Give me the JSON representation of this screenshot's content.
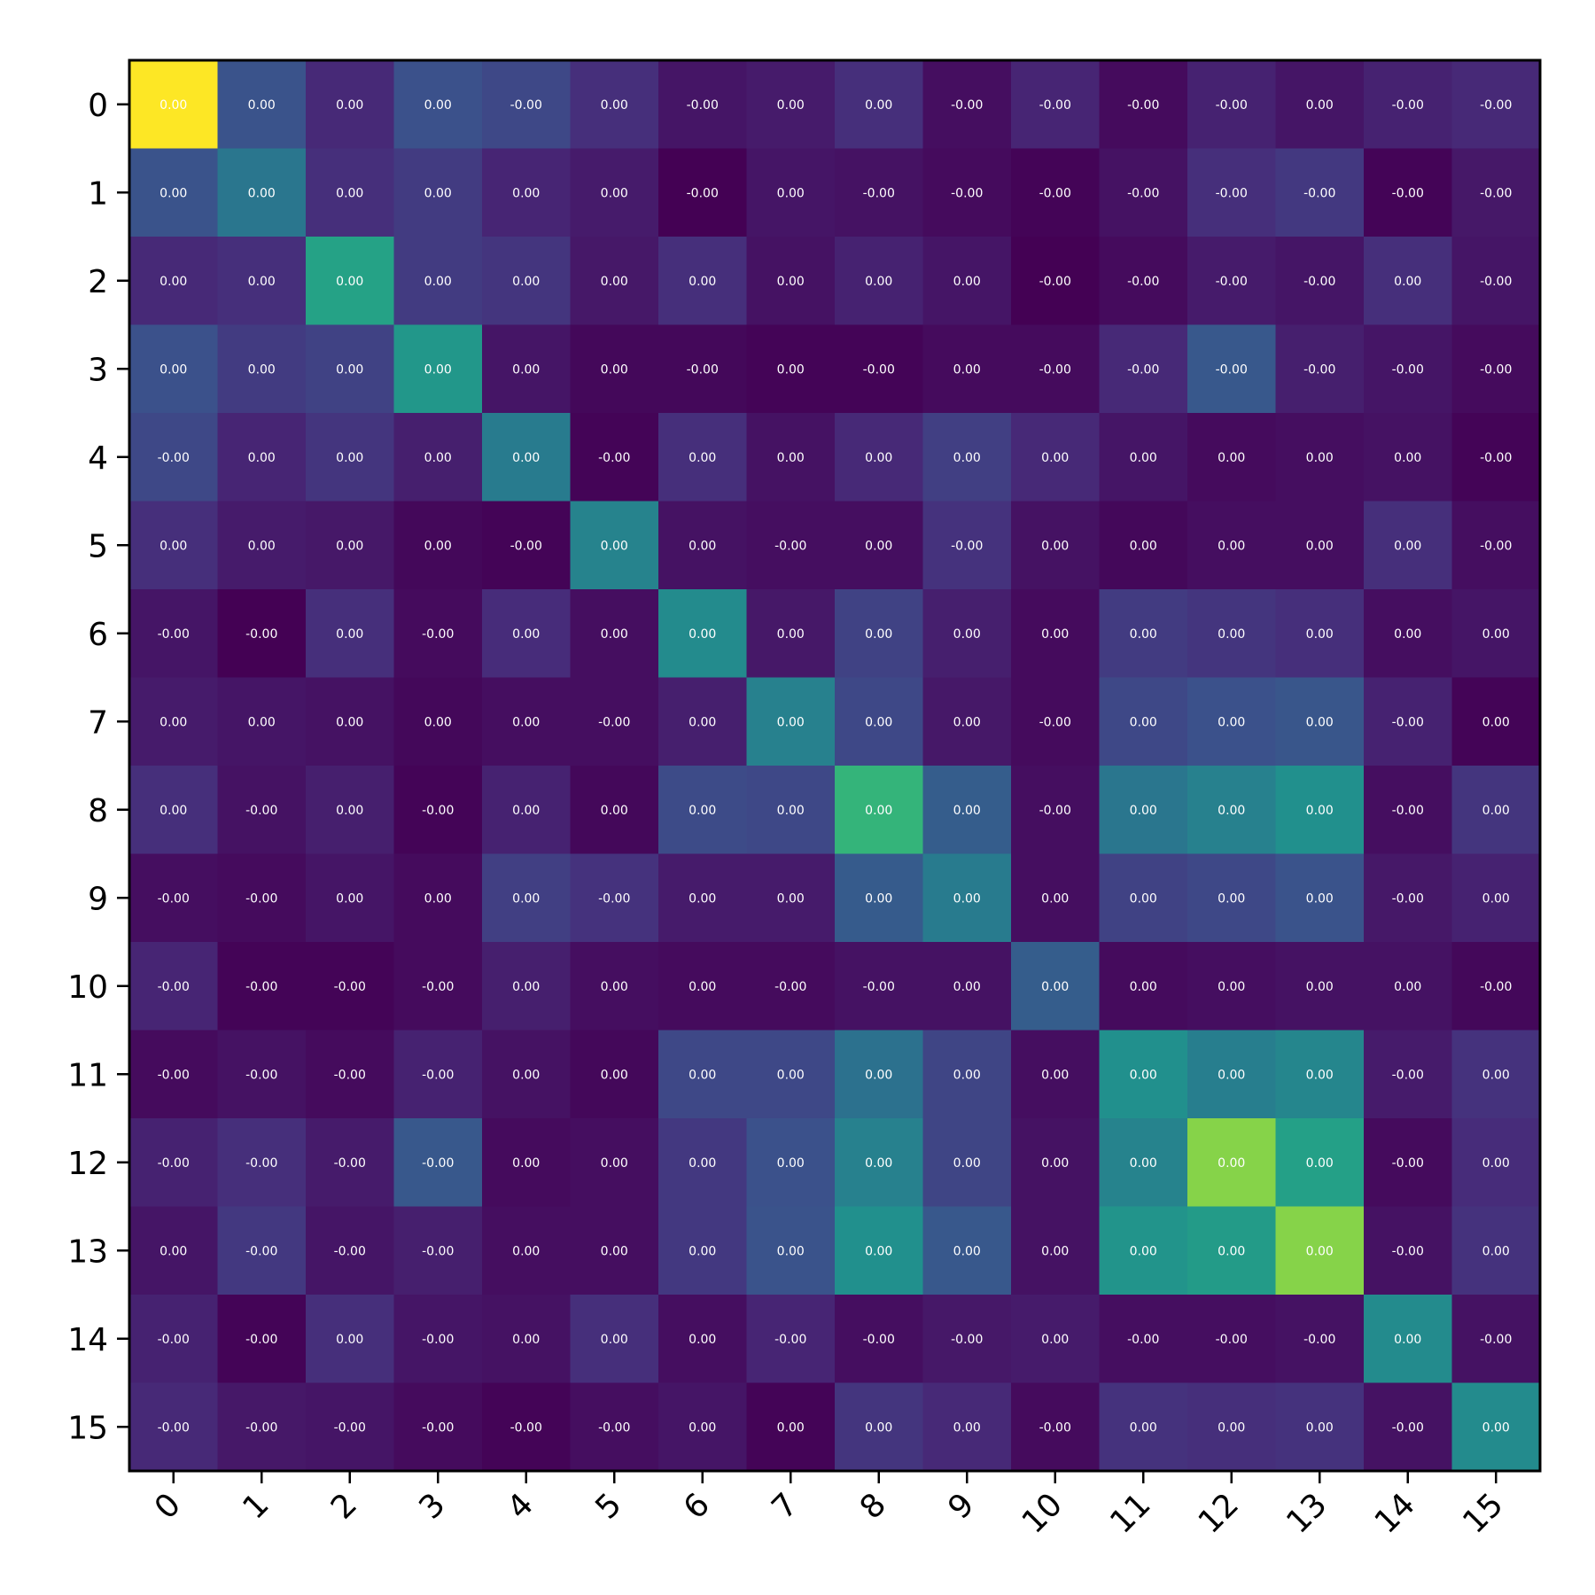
{
  "chart_data": {
    "type": "heatmap",
    "title": "",
    "xlabel": "",
    "ylabel": "",
    "colormap": "viridis",
    "x_categories": [
      "0",
      "1",
      "2",
      "3",
      "4",
      "5",
      "6",
      "7",
      "8",
      "9",
      "10",
      "11",
      "12",
      "13",
      "14",
      "15"
    ],
    "y_categories": [
      "0",
      "1",
      "2",
      "3",
      "4",
      "5",
      "6",
      "7",
      "8",
      "9",
      "10",
      "11",
      "12",
      "13",
      "14",
      "15"
    ],
    "color_range": [
      0.0,
      1.0
    ],
    "intensity": [
      [
        1.0,
        0.26,
        0.12,
        0.25,
        0.22,
        0.14,
        0.06,
        0.08,
        0.14,
        0.04,
        0.11,
        0.03,
        0.1,
        0.06,
        0.1,
        0.12
      ],
      [
        0.26,
        0.4,
        0.14,
        0.18,
        0.11,
        0.08,
        0.0,
        0.06,
        0.05,
        0.03,
        0.01,
        0.05,
        0.14,
        0.17,
        0.01,
        0.07
      ],
      [
        0.12,
        0.14,
        0.58,
        0.18,
        0.16,
        0.07,
        0.14,
        0.05,
        0.1,
        0.06,
        0.0,
        0.03,
        0.08,
        0.06,
        0.14,
        0.06
      ],
      [
        0.25,
        0.18,
        0.2,
        0.53,
        0.06,
        0.02,
        0.02,
        0.01,
        0.01,
        0.03,
        0.03,
        0.12,
        0.28,
        0.09,
        0.06,
        0.03
      ],
      [
        0.22,
        0.11,
        0.16,
        0.09,
        0.42,
        0.01,
        0.14,
        0.05,
        0.12,
        0.19,
        0.12,
        0.06,
        0.03,
        0.04,
        0.05,
        0.01
      ],
      [
        0.14,
        0.08,
        0.07,
        0.02,
        0.01,
        0.45,
        0.05,
        0.04,
        0.04,
        0.15,
        0.05,
        0.02,
        0.04,
        0.04,
        0.14,
        0.04
      ],
      [
        0.06,
        0.0,
        0.14,
        0.03,
        0.13,
        0.04,
        0.48,
        0.07,
        0.2,
        0.09,
        0.03,
        0.18,
        0.16,
        0.14,
        0.04,
        0.06
      ],
      [
        0.08,
        0.06,
        0.05,
        0.02,
        0.04,
        0.04,
        0.09,
        0.44,
        0.22,
        0.07,
        0.03,
        0.22,
        0.25,
        0.27,
        0.1,
        0.01
      ],
      [
        0.14,
        0.05,
        0.09,
        0.01,
        0.1,
        0.02,
        0.23,
        0.22,
        0.66,
        0.3,
        0.04,
        0.4,
        0.44,
        0.5,
        0.04,
        0.16
      ],
      [
        0.04,
        0.03,
        0.06,
        0.03,
        0.19,
        0.15,
        0.08,
        0.08,
        0.29,
        0.42,
        0.04,
        0.2,
        0.22,
        0.26,
        0.07,
        0.1
      ],
      [
        0.11,
        0.01,
        0.01,
        0.03,
        0.09,
        0.04,
        0.03,
        0.03,
        0.05,
        0.05,
        0.3,
        0.03,
        0.04,
        0.05,
        0.05,
        0.02
      ],
      [
        0.03,
        0.05,
        0.03,
        0.1,
        0.05,
        0.02,
        0.22,
        0.22,
        0.38,
        0.21,
        0.04,
        0.5,
        0.43,
        0.46,
        0.08,
        0.15
      ],
      [
        0.1,
        0.14,
        0.08,
        0.28,
        0.03,
        0.04,
        0.17,
        0.25,
        0.44,
        0.21,
        0.05,
        0.45,
        0.82,
        0.57,
        0.03,
        0.13
      ],
      [
        0.06,
        0.17,
        0.06,
        0.09,
        0.04,
        0.04,
        0.17,
        0.26,
        0.5,
        0.28,
        0.05,
        0.52,
        0.55,
        0.82,
        0.05,
        0.15
      ],
      [
        0.1,
        0.01,
        0.14,
        0.06,
        0.05,
        0.14,
        0.04,
        0.11,
        0.04,
        0.07,
        0.08,
        0.04,
        0.04,
        0.05,
        0.48,
        0.05
      ],
      [
        0.12,
        0.07,
        0.06,
        0.03,
        0.01,
        0.04,
        0.06,
        0.01,
        0.16,
        0.12,
        0.03,
        0.15,
        0.14,
        0.15,
        0.05,
        0.48
      ]
    ],
    "cell_labels": [
      [
        "0.00",
        "0.00",
        "0.00",
        "0.00",
        "-0.00",
        "0.00",
        "-0.00",
        "0.00",
        "0.00",
        "-0.00",
        "-0.00",
        "-0.00",
        "-0.00",
        "0.00",
        "-0.00",
        "-0.00"
      ],
      [
        "0.00",
        "0.00",
        "0.00",
        "0.00",
        "0.00",
        "0.00",
        "-0.00",
        "0.00",
        "-0.00",
        "-0.00",
        "-0.00",
        "-0.00",
        "-0.00",
        "-0.00",
        "-0.00",
        "-0.00"
      ],
      [
        "0.00",
        "0.00",
        "0.00",
        "0.00",
        "0.00",
        "0.00",
        "0.00",
        "0.00",
        "0.00",
        "0.00",
        "-0.00",
        "-0.00",
        "-0.00",
        "-0.00",
        "0.00",
        "-0.00"
      ],
      [
        "0.00",
        "0.00",
        "0.00",
        "0.00",
        "0.00",
        "0.00",
        "-0.00",
        "0.00",
        "-0.00",
        "0.00",
        "-0.00",
        "-0.00",
        "-0.00",
        "-0.00",
        "-0.00",
        "-0.00"
      ],
      [
        "-0.00",
        "0.00",
        "0.00",
        "0.00",
        "0.00",
        "-0.00",
        "0.00",
        "0.00",
        "0.00",
        "0.00",
        "0.00",
        "0.00",
        "0.00",
        "0.00",
        "0.00",
        "-0.00"
      ],
      [
        "0.00",
        "0.00",
        "0.00",
        "0.00",
        "-0.00",
        "0.00",
        "0.00",
        "-0.00",
        "0.00",
        "-0.00",
        "0.00",
        "0.00",
        "0.00",
        "0.00",
        "0.00",
        "-0.00"
      ],
      [
        "-0.00",
        "-0.00",
        "0.00",
        "-0.00",
        "0.00",
        "0.00",
        "0.00",
        "0.00",
        "0.00",
        "0.00",
        "0.00",
        "0.00",
        "0.00",
        "0.00",
        "0.00",
        "0.00"
      ],
      [
        "0.00",
        "0.00",
        "0.00",
        "0.00",
        "0.00",
        "-0.00",
        "0.00",
        "0.00",
        "0.00",
        "0.00",
        "-0.00",
        "0.00",
        "0.00",
        "0.00",
        "-0.00",
        "0.00"
      ],
      [
        "0.00",
        "-0.00",
        "0.00",
        "-0.00",
        "0.00",
        "0.00",
        "0.00",
        "0.00",
        "0.00",
        "0.00",
        "-0.00",
        "0.00",
        "0.00",
        "0.00",
        "-0.00",
        "0.00"
      ],
      [
        "-0.00",
        "-0.00",
        "0.00",
        "0.00",
        "0.00",
        "-0.00",
        "0.00",
        "0.00",
        "0.00",
        "0.00",
        "0.00",
        "0.00",
        "0.00",
        "0.00",
        "-0.00",
        "0.00"
      ],
      [
        "-0.00",
        "-0.00",
        "-0.00",
        "-0.00",
        "0.00",
        "0.00",
        "0.00",
        "-0.00",
        "-0.00",
        "0.00",
        "0.00",
        "0.00",
        "0.00",
        "0.00",
        "0.00",
        "-0.00"
      ],
      [
        "-0.00",
        "-0.00",
        "-0.00",
        "-0.00",
        "0.00",
        "0.00",
        "0.00",
        "0.00",
        "0.00",
        "0.00",
        "0.00",
        "0.00",
        "0.00",
        "0.00",
        "-0.00",
        "0.00"
      ],
      [
        "-0.00",
        "-0.00",
        "-0.00",
        "-0.00",
        "0.00",
        "0.00",
        "0.00",
        "0.00",
        "0.00",
        "0.00",
        "0.00",
        "0.00",
        "0.00",
        "0.00",
        "-0.00",
        "0.00"
      ],
      [
        "0.00",
        "-0.00",
        "-0.00",
        "-0.00",
        "0.00",
        "0.00",
        "0.00",
        "0.00",
        "0.00",
        "0.00",
        "0.00",
        "0.00",
        "0.00",
        "0.00",
        "-0.00",
        "0.00"
      ],
      [
        "-0.00",
        "-0.00",
        "0.00",
        "-0.00",
        "0.00",
        "0.00",
        "0.00",
        "-0.00",
        "-0.00",
        "-0.00",
        "0.00",
        "-0.00",
        "-0.00",
        "-0.00",
        "0.00",
        "-0.00"
      ],
      [
        "-0.00",
        "-0.00",
        "-0.00",
        "-0.00",
        "-0.00",
        "-0.00",
        "0.00",
        "0.00",
        "0.00",
        "0.00",
        "-0.00",
        "0.00",
        "0.00",
        "0.00",
        "-0.00",
        "0.00"
      ]
    ],
    "colorbar": false,
    "grid": false,
    "legend": "none"
  }
}
